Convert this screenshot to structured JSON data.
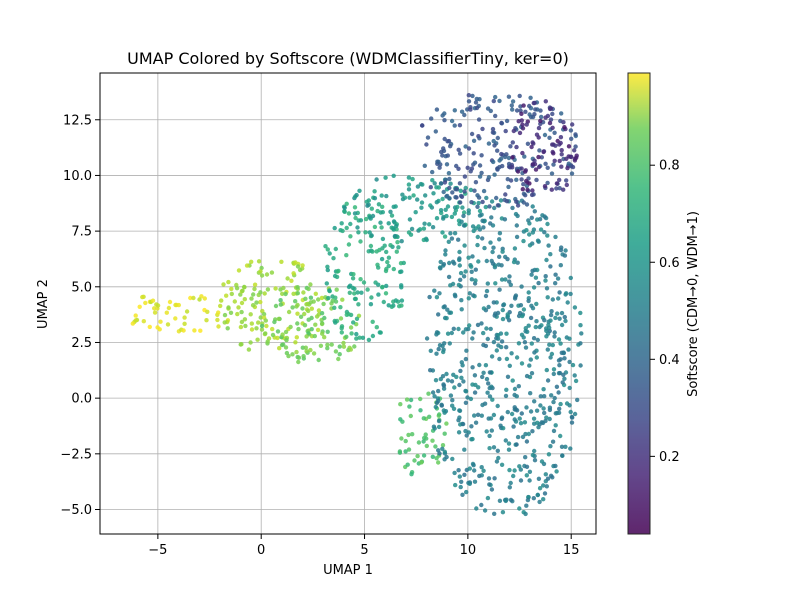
{
  "chart_data": {
    "type": "scatter",
    "title": "UMAP Colored by Softscore (WDMClassifierTiny, ker=0)",
    "xlabel": "UMAP 1",
    "ylabel": "UMAP 2",
    "xlim": [
      -7.8,
      16.2
    ],
    "ylim": [
      -6.1,
      14.6
    ],
    "x_ticks": [
      -5,
      0,
      5,
      10,
      15
    ],
    "x_tick_labels": [
      "−5",
      "0",
      "5",
      "10",
      "15"
    ],
    "y_ticks": [
      -5.0,
      -2.5,
      0.0,
      2.5,
      5.0,
      7.5,
      10.0,
      12.5
    ],
    "y_tick_labels": [
      "−5.0",
      "−2.5",
      "0.0",
      "2.5",
      "5.0",
      "7.5",
      "10.0",
      "12.5"
    ],
    "grid": true,
    "colormap": "viridis",
    "colorbar": {
      "label": "Softscore (CDM→0, WDM→1)",
      "range": [
        0.04,
        0.99
      ],
      "ticks": [
        0.2,
        0.4,
        0.6,
        0.8
      ],
      "tick_labels": [
        "0.2",
        "0.4",
        "0.6",
        "0.8"
      ]
    },
    "cluster_regions": [
      {
        "x": [
          -6.8,
          -1.5
        ],
        "y": [
          2.9,
          4.7
        ],
        "softscore": 0.95
      },
      {
        "x": [
          -2.0,
          3.0
        ],
        "y": [
          2.0,
          6.3
        ],
        "softscore": 0.85
      },
      {
        "x": [
          0.0,
          5.0
        ],
        "y": [
          1.6,
          5.0
        ],
        "softscore": 0.78
      },
      {
        "x": [
          3.0,
          7.0
        ],
        "y": [
          2.5,
          9.0
        ],
        "softscore": 0.62
      },
      {
        "x": [
          4.0,
          11.0
        ],
        "y": [
          7.0,
          10.0
        ],
        "softscore": 0.55
      },
      {
        "x": [
          6.5,
          9.0
        ],
        "y": [
          -3.5,
          0.5
        ],
        "softscore": 0.72
      },
      {
        "x": [
          8.0,
          15.5
        ],
        "y": [
          -5.2,
          9.0
        ],
        "softscore": 0.45
      },
      {
        "x": [
          7.5,
          15.3
        ],
        "y": [
          8.5,
          13.7
        ],
        "softscore": 0.3
      },
      {
        "x": [
          12.0,
          15.3
        ],
        "y": [
          9.0,
          13.5
        ],
        "softscore": 0.15
      }
    ]
  }
}
